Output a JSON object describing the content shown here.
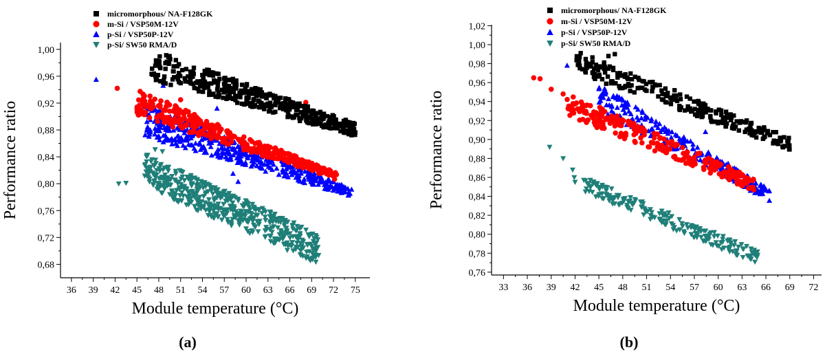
{
  "chart_data": [
    {
      "id": "a",
      "type": "scatter",
      "panel_label": "(a)",
      "xlabel": "Module temperature (°C)",
      "ylabel": "Performance ratio",
      "xlim": [
        34.5,
        77
      ],
      "ylim": [
        0.66,
        1.01
      ],
      "x_ticks": [
        "36",
        "39",
        "42",
        "45",
        "48",
        "51",
        "54",
        "57",
        "60",
        "63",
        "66",
        "69",
        "72",
        "75"
      ],
      "y_ticks": [
        "0,68",
        "0,72",
        "0,76",
        "0,80",
        "0,84",
        "0,88",
        "0,92",
        "0,96",
        "1,00"
      ],
      "legend_position": "top-left",
      "series": [
        {
          "name": "micromorphous/ NA-F128GK",
          "marker": "square",
          "color": "#000000",
          "band": {
            "x": [
              47,
              75
            ],
            "y_top": [
              0.995,
              0.885
            ],
            "y_bottom": [
              0.96,
              0.875
            ],
            "n": 420
          }
        },
        {
          "name": "m-Si / VSP50M-12V",
          "marker": "circle",
          "color": "#ff0000",
          "band": {
            "x": [
              45,
              72.5
            ],
            "y_top": [
              0.935,
              0.81
            ],
            "y_bottom": [
              0.905,
              0.812
            ],
            "n": 380
          },
          "outliers": [
            [
              42.3,
              0.942
            ],
            [
              68.2,
              0.921
            ],
            [
              51.0,
              0.925
            ]
          ]
        },
        {
          "name": "p-Si / VSP50P-12V",
          "marker": "triangle-up",
          "color": "#0000ff",
          "band": {
            "x": [
              46,
              74.5
            ],
            "y_top": [
              0.915,
              0.788
            ],
            "y_bottom": [
              0.875,
              0.786
            ],
            "n": 450
          },
          "outliers": [
            [
              39.4,
              0.955
            ],
            [
              48.6,
              0.946
            ],
            [
              56.0,
              0.912
            ],
            [
              58.9,
              0.803
            ],
            [
              58.2,
              0.815
            ]
          ]
        },
        {
          "name": "p-Si/ SW50 RMA/D",
          "marker": "triangle-down",
          "color": "#1f7f78",
          "band": {
            "x": [
              46,
              70
            ],
            "y_top": [
              0.84,
              0.72
            ],
            "y_bottom": [
              0.8,
              0.685
            ],
            "n": 500
          },
          "outliers": [
            [
              42.5,
              0.8
            ],
            [
              43.5,
              0.801
            ],
            [
              47.5,
              0.851
            ],
            [
              48.5,
              0.848
            ]
          ]
        }
      ]
    },
    {
      "id": "b",
      "type": "scatter",
      "panel_label": "(b)",
      "xlabel": "Module temperature (°C)",
      "ylabel": "Performance ratio",
      "xlim": [
        31.5,
        73
      ],
      "ylim": [
        0.757,
        1.021
      ],
      "x_ticks": [
        "33",
        "36",
        "39",
        "42",
        "45",
        "48",
        "51",
        "54",
        "57",
        "60",
        "63",
        "66",
        "69",
        "72"
      ],
      "y_ticks": [
        "0,76",
        "0,78",
        "0,80",
        "0,82",
        "0,84",
        "0,86",
        "0,88",
        "0,90",
        "0,92",
        "0,94",
        "0,96",
        "0,98",
        "1,00",
        "1,02"
      ],
      "legend_position": "top-left",
      "series": [
        {
          "name": "micromorphous/ NA-F128GK",
          "marker": "square",
          "color": "#000000",
          "band": {
            "x": [
              42,
              69
            ],
            "y_top": [
              0.99,
              0.897
            ],
            "y_bottom": [
              0.975,
              0.894
            ],
            "n": 260
          },
          "outliers": [
            [
              47.0,
              0.99
            ],
            [
              46.2,
              0.988
            ]
          ]
        },
        {
          "name": "m-Si / VSP50M-12V",
          "marker": "circle",
          "color": "#ff0000",
          "band": {
            "x": [
              41,
              64.5
            ],
            "y_top": [
              0.945,
              0.854
            ],
            "y_bottom": [
              0.93,
              0.851
            ],
            "n": 260
          },
          "outliers": [
            [
              36.8,
              0.965
            ],
            [
              37.6,
              0.964
            ],
            [
              39.0,
              0.953
            ],
            [
              40.5,
              0.948
            ]
          ]
        },
        {
          "name": "p-Si / VSP50P-12V",
          "marker": "triangle-up",
          "color": "#0000ff",
          "band": {
            "x": [
              45,
              66.5
            ],
            "y_top": [
              0.955,
              0.842
            ],
            "y_bottom": [
              0.935,
              0.84
            ],
            "n": 260
          },
          "outliers": [
            [
              41.0,
              0.978
            ],
            [
              42.5,
              0.98
            ],
            [
              58.4,
              0.908
            ]
          ]
        },
        {
          "name": "p-Si/ SW50 RMA/D",
          "marker": "triangle-down",
          "color": "#1f7f78",
          "band": {
            "x": [
              43,
              65
            ],
            "y_top": [
              0.856,
              0.778
            ],
            "y_bottom": [
              0.85,
              0.773
            ],
            "n": 200
          },
          "outliers": [
            [
              38.8,
              0.892
            ],
            [
              40.5,
              0.88
            ],
            [
              41.7,
              0.868
            ],
            [
              41.9,
              0.86
            ],
            [
              42.0,
              0.855
            ]
          ]
        }
      ]
    }
  ]
}
